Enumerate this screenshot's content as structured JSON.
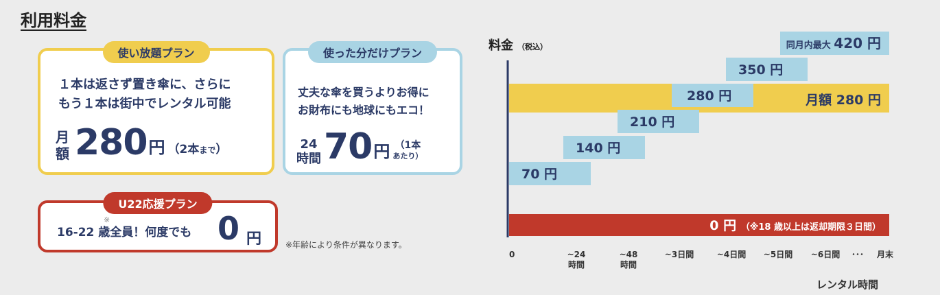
{
  "page_title": "利用料金",
  "plans": {
    "unlimited": {
      "tag": "使い放題プラン",
      "desc_line1": "１本は返さず置き傘に、さらに",
      "desc_line2": "もう１本は街中でレンタル可能",
      "prefix_top": "月",
      "prefix_bottom": "額",
      "price": "280",
      "unit": "円",
      "note_open": "（2本",
      "note_small": "まで",
      "note_close": "）"
    },
    "payg": {
      "tag": "使った分だけプラン",
      "desc_line1": "丈夫な傘を買うよりお得に",
      "desc_line2": "お財布にも地球にもエコ！",
      "prefix_top": "24",
      "prefix_bottom": "時間",
      "price": "70",
      "unit": "円",
      "note_top": "（1本",
      "note_bottom": "あたり）"
    },
    "u22": {
      "tag": "U22応援プラン",
      "mark": "※",
      "desc": "16-22 歳全員！何度でも",
      "price": "0",
      "unit": "円"
    }
  },
  "footnote": "※年齢により条件が異なります。",
  "chart_data": {
    "type": "bar",
    "ylabel": "料金",
    "ylabel_sub": "（税込）",
    "xlabel": "レンタル時間",
    "categories": [
      "0",
      "~24 時間",
      "~48 時間",
      "~3日間",
      "~4日間",
      "~5日間",
      "~6日間",
      "･･･",
      "月末"
    ],
    "tick_labels": [
      {
        "line1": "0",
        "line2": ""
      },
      {
        "line1": "~24",
        "line2": "時間"
      },
      {
        "line1": "~48",
        "line2": "時間"
      },
      {
        "line1": "~3日間",
        "line2": ""
      },
      {
        "line1": "~4日間",
        "line2": ""
      },
      {
        "line1": "~5日間",
        "line2": ""
      },
      {
        "line1": "~6日間",
        "line2": ""
      },
      {
        "line1": "･･･",
        "line2": ""
      },
      {
        "line1": "月末",
        "line2": ""
      }
    ],
    "series": [
      {
        "name": "使った分だけプラン",
        "color": "#a9d4e4",
        "steps": [
          {
            "from": 0,
            "to": 1,
            "value": 70,
            "label": "70 円"
          },
          {
            "from": 1,
            "to": 2,
            "value": 140,
            "label": "140 円"
          },
          {
            "from": 2,
            "to": 3,
            "value": 210,
            "label": "210 円"
          },
          {
            "from": 3,
            "to": 4,
            "value": 280,
            "label": "280 円"
          },
          {
            "from": 4,
            "to": 5,
            "value": 350,
            "label": "350 円"
          },
          {
            "from": 5,
            "to": 7.5,
            "value": 420,
            "label": "同月内最大 420 円"
          }
        ]
      },
      {
        "name": "使い放題プラン",
        "color": "#f0cd4e",
        "value": 280,
        "label": "月額 280 円"
      },
      {
        "name": "U22応援プラン",
        "color": "#c0392b",
        "value": 0,
        "label": "0 円",
        "note": "（※18 歳以上は返却期限３日間）"
      }
    ]
  }
}
